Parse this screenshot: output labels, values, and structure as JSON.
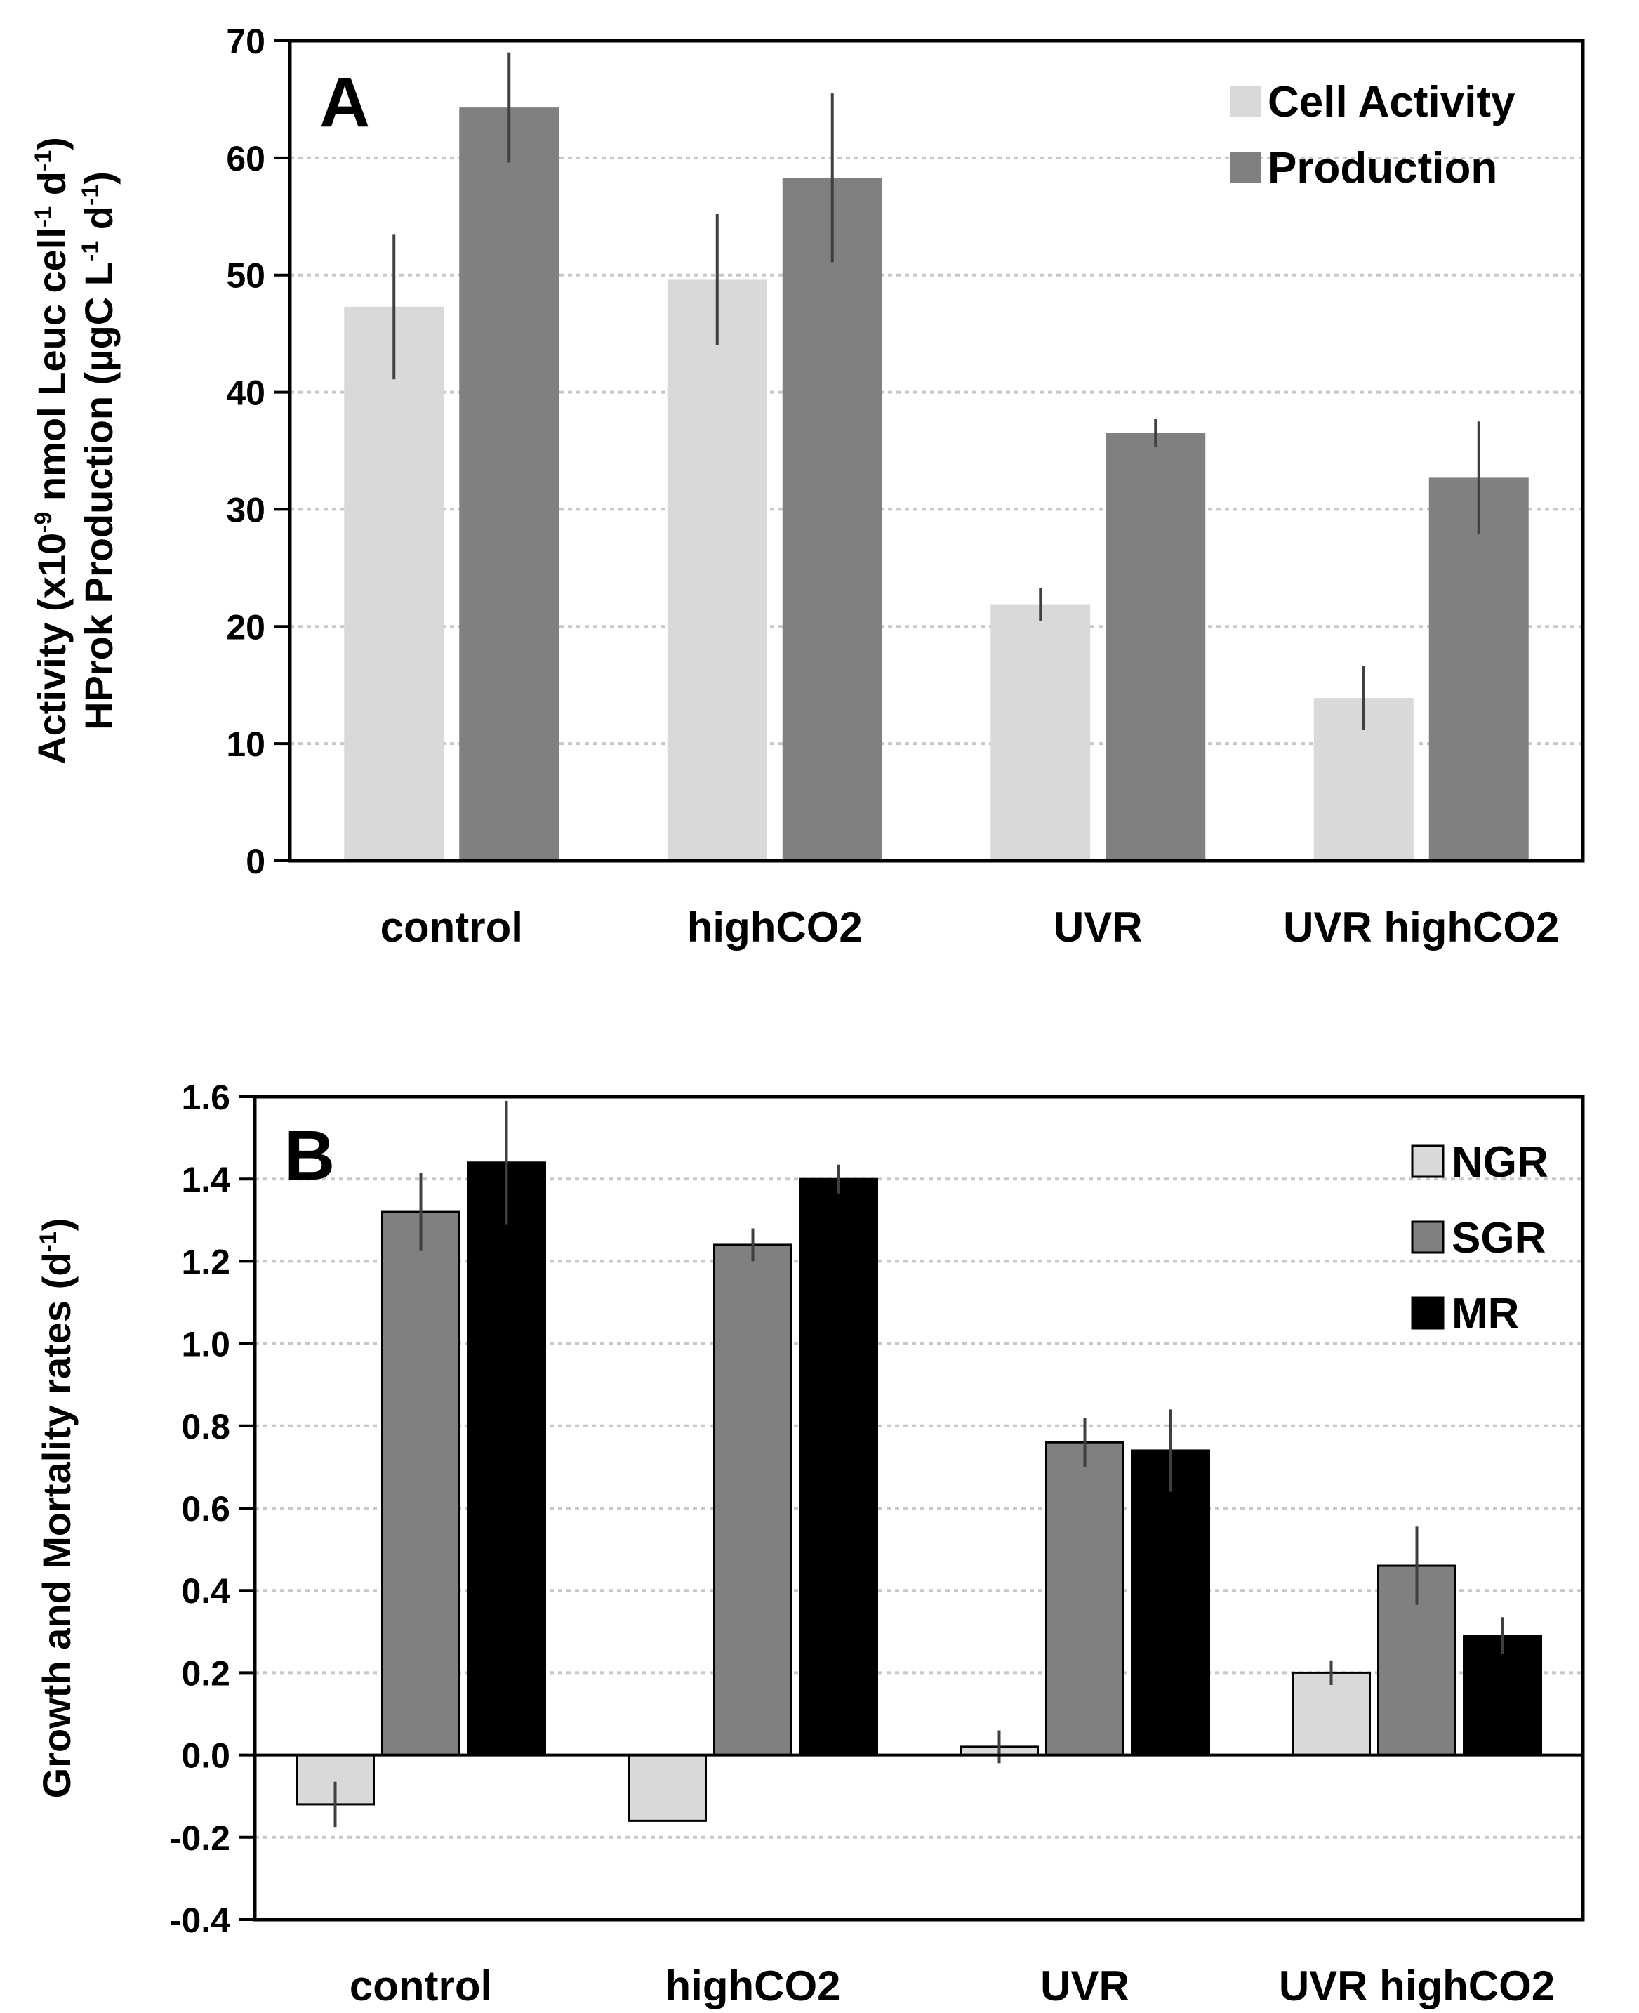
{
  "chart_data": [
    {
      "type": "bar",
      "panel": "A",
      "title": "",
      "xlabel": "",
      "ylabel_line1": "Activity (x10-9 nmol Leuc cell-1 d-1)",
      "ylabel_line2": "HProk Production (µgC L-1 d-1)",
      "ylim": [
        0,
        70
      ],
      "yticks": [
        0,
        10,
        20,
        30,
        40,
        50,
        60,
        70
      ],
      "grid": true,
      "legend_position": "top-right",
      "categories": [
        "control",
        "highCO2",
        "UVR",
        "UVR highCO2"
      ],
      "series": [
        {
          "name": "Cell Activity",
          "color": "#d9d9d9",
          "values": [
            47.3,
            49.6,
            21.9,
            13.9
          ],
          "errors": [
            6.2,
            5.6,
            1.4,
            2.7
          ]
        },
        {
          "name": "Production",
          "color": "#808080",
          "values": [
            64.3,
            58.3,
            36.5,
            32.7
          ],
          "errors": [
            4.7,
            7.2,
            1.2,
            4.8
          ]
        }
      ]
    },
    {
      "type": "bar",
      "panel": "B",
      "title": "",
      "xlabel": "",
      "ylabel": "Growth and Mortality rates (d-1)",
      "ylim": [
        -0.4,
        1.6
      ],
      "yticks": [
        "-0.4",
        "-0.2",
        "0.0",
        "0.2",
        "0.4",
        "0.6",
        "0.8",
        "1.0",
        "1.2",
        "1.4",
        "1.6"
      ],
      "grid": true,
      "legend_position": "top-right",
      "categories": [
        "control",
        "highCO2",
        "UVR",
        "UVR highCO2"
      ],
      "series": [
        {
          "name": "NGR",
          "color": "#d9d9d9",
          "values": [
            -0.12,
            -0.16,
            0.02,
            0.2
          ],
          "errors": [
            0.055,
            0.0,
            0.04,
            0.03
          ]
        },
        {
          "name": "SGR",
          "color": "#808080",
          "values": [
            1.32,
            1.24,
            0.76,
            0.46
          ],
          "errors": [
            0.095,
            0.04,
            0.06,
            0.095
          ]
        },
        {
          "name": "MR",
          "color": "#000000",
          "values": [
            1.44,
            1.4,
            0.74,
            0.29
          ],
          "errors": [
            0.15,
            0.035,
            0.1,
            0.045
          ]
        }
      ]
    }
  ]
}
